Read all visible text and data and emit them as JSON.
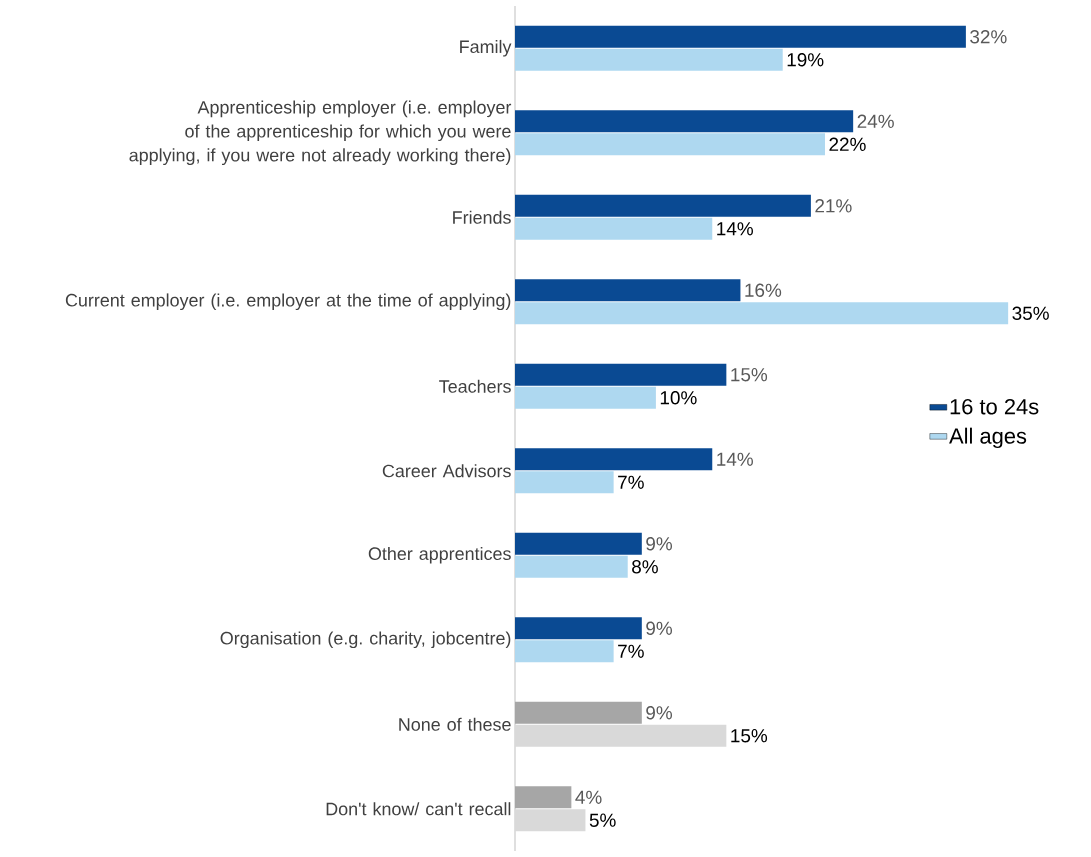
{
  "chart_data": {
    "type": "bar",
    "orientation": "horizontal",
    "legend": "right",
    "categories": [
      "Family",
      "Apprenticeship employer (i.e. employer of the apprenticeship for which you were applying, if you were not already working there)",
      "Friends",
      "Current employer (i.e. employer at the time of applying)",
      "Teachers",
      "Career Advisors",
      "Other apprentices",
      "Organisation (e.g. charity, jobcentre)",
      "None of these",
      "Don't know/ can't recall"
    ],
    "series": [
      {
        "name": "16 to 24s",
        "color": "#0a4a93",
        "colors": [
          "#0a4a93",
          "#0a4a93",
          "#0a4a93",
          "#0a4a93",
          "#0a4a93",
          "#0a4a93",
          "#0a4a93",
          "#0a4a93",
          "#a6a6a6",
          "#a6a6a6"
        ],
        "values": [
          32,
          24,
          21,
          16,
          15,
          14,
          9,
          9,
          9,
          4
        ],
        "value_labels": [
          "32%",
          "24%",
          "21%",
          "16%",
          "15%",
          "14%",
          "9%",
          "9%",
          "9%",
          "4%"
        ]
      },
      {
        "name": "All ages",
        "color": "#aed8f0",
        "colors": [
          "#aed8f0",
          "#aed8f0",
          "#aed8f0",
          "#aed8f0",
          "#aed8f0",
          "#aed8f0",
          "#aed8f0",
          "#aed8f0",
          "#d9d9d9",
          "#d9d9d9"
        ],
        "values": [
          19,
          22,
          14,
          35,
          10,
          7,
          8,
          7,
          15,
          5
        ],
        "value_labels": [
          "19%",
          "22%",
          "14%",
          "35%",
          "10%",
          "7%",
          "8%",
          "7%",
          "15%",
          "5%"
        ]
      }
    ]
  }
}
